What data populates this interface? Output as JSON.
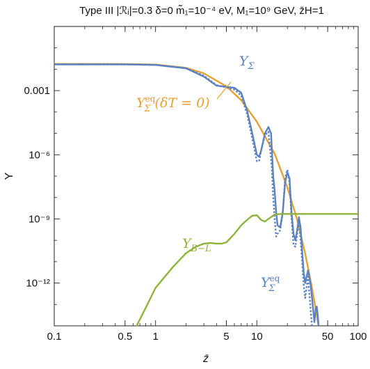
{
  "chart_data": {
    "type": "line",
    "title": "Type III |ℛᵢ|=0.3 δ=0 m̃₁=10⁻⁴ eV, M₁=10⁹ GeV, z̄H=1",
    "xlabel": "z̄",
    "ylabel": "Y",
    "xscale": "log",
    "yscale": "log",
    "xlim": [
      0.1,
      100
    ],
    "ylim": [
      1e-14,
      1
    ],
    "grid": false,
    "x_ticks": [
      {
        "value": 0.1,
        "label": "0.1"
      },
      {
        "value": 0.5,
        "label": "0.5"
      },
      {
        "value": 1,
        "label": "1"
      },
      {
        "value": 5,
        "label": "5"
      },
      {
        "value": 10,
        "label": "10"
      },
      {
        "value": 50,
        "label": "50"
      },
      {
        "value": 100,
        "label": "100"
      }
    ],
    "y_ticks": [
      {
        "value": 0.001,
        "label": "0.001"
      },
      {
        "value": 1e-06,
        "label": "10⁻⁶"
      },
      {
        "value": 1e-09,
        "label": "10⁻⁹"
      },
      {
        "value": 1e-12,
        "label": "10⁻¹²"
      }
    ],
    "series": [
      {
        "name": "Y_Σ^eq(δT=0)",
        "label_text": "Y",
        "label_sub": "Σ",
        "label_sup": "eq",
        "label_suffix": "(δT = 0)",
        "color": "#e8a030",
        "dash": "solid",
        "points": [
          [
            0.1,
            0.0177
          ],
          [
            0.5,
            0.0176
          ],
          [
            1,
            0.0166
          ],
          [
            2,
            0.0116
          ],
          [
            3,
            0.0064
          ],
          [
            5,
            0.00158
          ],
          [
            7,
            0.00036
          ],
          [
            10,
            3.5e-05
          ],
          [
            15,
            1.1e-06
          ],
          [
            20,
            3e-08
          ],
          [
            25,
            9e-10
          ],
          [
            30,
            2.4e-11
          ],
          [
            35,
            6e-13
          ],
          [
            40,
            1.5e-14
          ],
          [
            42,
            4e-15
          ]
        ]
      },
      {
        "name": "Y_Σ",
        "label_text": "Y",
        "label_sub": "Σ",
        "color": "#5b82c0",
        "dash": "solid",
        "points": [
          [
            0.1,
            0.0168
          ],
          [
            0.5,
            0.0167
          ],
          [
            1,
            0.0158
          ],
          [
            2,
            0.011
          ],
          [
            3,
            0.0045
          ],
          [
            4,
            0.0017
          ],
          [
            5,
            0.0015
          ],
          [
            6,
            0.00135
          ],
          [
            7,
            0.0008
          ],
          [
            8,
            0.00012
          ],
          [
            9,
            1e-05
          ],
          [
            10,
            1e-06
          ],
          [
            10.5,
            8e-07
          ],
          [
            11,
            1.5e-06
          ],
          [
            12,
            1e-05
          ],
          [
            13,
            2e-05
          ],
          [
            13.8,
            1e-05
          ],
          [
            14.5,
            1e-07
          ],
          [
            15,
            2e-08
          ],
          [
            15.5,
            2e-09
          ],
          [
            16,
            5e-10
          ],
          [
            17,
            4e-10
          ],
          [
            18,
            2e-09
          ],
          [
            19,
            5e-08
          ],
          [
            20,
            1.5e-07
          ],
          [
            21,
            8e-08
          ],
          [
            22,
            2e-09
          ],
          [
            23,
            2e-10
          ],
          [
            24,
            1e-10
          ],
          [
            25,
            3e-10
          ],
          [
            26,
            1.2e-09
          ],
          [
            27,
            4e-10
          ],
          [
            28,
            3e-11
          ],
          [
            29,
            3e-12
          ],
          [
            30,
            1e-12
          ],
          [
            32,
            4e-12
          ],
          [
            34,
            8e-13
          ],
          [
            35,
            2e-13
          ],
          [
            37,
            1.5e-14
          ],
          [
            38,
            6e-14
          ],
          [
            39,
            8e-14
          ],
          [
            40,
            3e-14
          ],
          [
            41,
            5e-15
          ]
        ]
      },
      {
        "name": "Y_Σ^eq",
        "label_text": "Y",
        "label_sub": "Σ",
        "label_sup": "eq",
        "color": "#5b82c0",
        "dash": "dotted",
        "points": [
          [
            0.1,
            0.0172
          ],
          [
            0.5,
            0.0171
          ],
          [
            1,
            0.0162
          ],
          [
            2,
            0.0113
          ],
          [
            3,
            0.005
          ],
          [
            4,
            0.0018
          ],
          [
            5,
            0.0014
          ],
          [
            6,
            0.0011
          ],
          [
            7,
            0.0006
          ],
          [
            8,
            8e-05
          ],
          [
            9,
            6e-06
          ],
          [
            10,
            5e-07
          ],
          [
            10.5,
            5e-07
          ],
          [
            11,
            1.5e-06
          ],
          [
            12,
            8e-06
          ],
          [
            13,
            1.2e-05
          ],
          [
            14,
            3e-07
          ],
          [
            14.5,
            1e-08
          ],
          [
            15,
            1e-09
          ],
          [
            15.5,
            1.5e-10
          ],
          [
            16,
            2e-10
          ],
          [
            17,
            3e-10
          ],
          [
            18,
            2e-09
          ],
          [
            19,
            8e-08
          ],
          [
            20,
            2e-07
          ],
          [
            21,
            5e-08
          ],
          [
            22,
            1e-09
          ],
          [
            23,
            6e-11
          ],
          [
            24,
            5e-11
          ],
          [
            25,
            2e-10
          ],
          [
            26,
            8e-10
          ],
          [
            27,
            1e-10
          ],
          [
            28,
            1e-11
          ],
          [
            29,
            8e-13
          ],
          [
            30,
            2e-13
          ],
          [
            32,
            2e-12
          ],
          [
            33,
            3e-13
          ],
          [
            34,
            5e-14
          ],
          [
            35,
            1e-14
          ],
          [
            36,
            3e-15
          ]
        ]
      },
      {
        "name": "Y_B−L",
        "label_text": "Y",
        "label_sub": "B−L",
        "color": "#8db33a",
        "dash": "solid",
        "points": [
          [
            0.65,
            1e-14
          ],
          [
            0.8,
            7e-14
          ],
          [
            1,
            6e-13
          ],
          [
            1.5,
            6e-12
          ],
          [
            2,
            2.5e-11
          ],
          [
            2.5,
            5e-11
          ],
          [
            3,
            7e-11
          ],
          [
            3.5,
            7.5e-11
          ],
          [
            4,
            7e-11
          ],
          [
            4.5,
            7e-11
          ],
          [
            5,
            8e-11
          ],
          [
            6,
            2e-10
          ],
          [
            7,
            5e-10
          ],
          [
            8,
            9e-10
          ],
          [
            9,
            1.4e-09
          ],
          [
            10,
            1.5e-09
          ],
          [
            11,
            9e-10
          ],
          [
            12,
            7.5e-10
          ],
          [
            13,
            1e-09
          ],
          [
            15,
            1.6e-09
          ],
          [
            17,
            1.7e-09
          ],
          [
            20,
            1.7e-09
          ],
          [
            30,
            1.7e-09
          ],
          [
            50,
            1.7e-09
          ],
          [
            100,
            1.7e-09
          ]
        ]
      }
    ]
  }
}
